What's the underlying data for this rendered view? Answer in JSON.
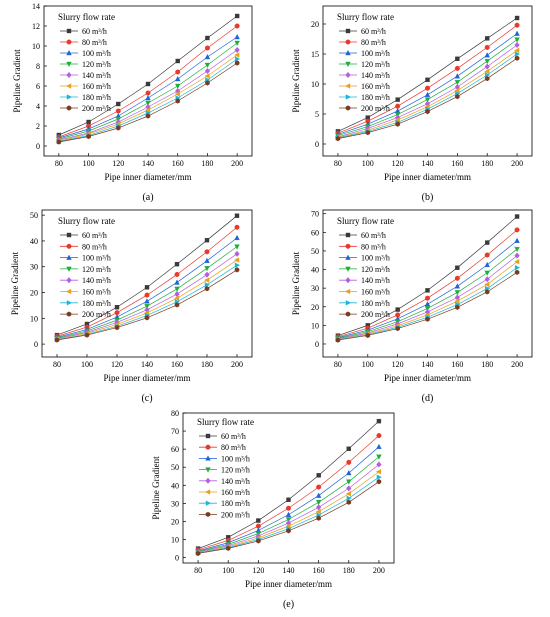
{
  "legend_title": "Slurry flow rate",
  "x_axis_title": "Pipe inner diameter/mm",
  "y_axis_title": "Pipeline Gradient",
  "series_names": [
    "60 m³/h",
    "80 m³/h",
    "100 m³/h",
    "120 m³/h",
    "140 m³/h",
    "160 m³/h",
    "180 m³/h",
    "200 m³/h"
  ],
  "series_colors": [
    "#3a3a3a",
    "#e8392b",
    "#1f64d8",
    "#1fae3a",
    "#b35ee0",
    "#e8a21a",
    "#1ab6dc",
    "#7a3a1e"
  ],
  "series_markers": [
    "square",
    "circle",
    "triangle-up",
    "triangle-down",
    "diamond",
    "triangle-left",
    "triangle-right",
    "hexagon"
  ],
  "x_ticks": [
    80,
    100,
    120,
    140,
    160,
    180,
    200
  ],
  "chart_data": [
    {
      "type": "line",
      "label": "(a)",
      "x": [
        80,
        100,
        120,
        140,
        160,
        180,
        200
      ],
      "xlabel": "Pipe inner diameter/mm",
      "ylabel": "Pipeline Gradient",
      "ylim": [
        -1,
        14
      ],
      "yticks": [
        0,
        2,
        4,
        6,
        8,
        10,
        12,
        14
      ],
      "legend": "top-left",
      "series": [
        {
          "name": "60 m³/h",
          "values": [
            1.1,
            2.4,
            4.2,
            6.2,
            8.5,
            10.8,
            13.0
          ]
        },
        {
          "name": "80 m³/h",
          "values": [
            0.9,
            2.0,
            3.5,
            5.3,
            7.4,
            9.8,
            12.0
          ]
        },
        {
          "name": "100 m³/h",
          "values": [
            0.8,
            1.7,
            3.0,
            4.8,
            6.7,
            8.9,
            10.9
          ]
        },
        {
          "name": "120 m³/h",
          "values": [
            0.7,
            1.5,
            2.7,
            4.3,
            6.0,
            8.1,
            10.3
          ]
        },
        {
          "name": "140 m³/h",
          "values": [
            0.6,
            1.3,
            2.4,
            3.9,
            5.5,
            7.5,
            9.6
          ]
        },
        {
          "name": "160 m³/h",
          "values": [
            0.5,
            1.2,
            2.2,
            3.6,
            5.2,
            7.0,
            9.1
          ]
        },
        {
          "name": "180 m³/h",
          "values": [
            0.45,
            1.05,
            2.0,
            3.3,
            4.8,
            6.6,
            8.7
          ]
        },
        {
          "name": "200 m³/h",
          "values": [
            0.4,
            0.95,
            1.8,
            3.0,
            4.5,
            6.3,
            8.3
          ]
        }
      ]
    },
    {
      "type": "line",
      "label": "(b)",
      "x": [
        80,
        100,
        120,
        140,
        160,
        180,
        200
      ],
      "xlabel": "Pipe inner diameter/mm",
      "ylabel": "Pipeline Gradient",
      "ylim": [
        -2,
        23
      ],
      "yticks": [
        0,
        5,
        10,
        15,
        20
      ],
      "legend": "top-left",
      "series": [
        {
          "name": "60 m³/h",
          "values": [
            2.1,
            4.4,
            7.4,
            10.7,
            14.2,
            17.6,
            21.0
          ]
        },
        {
          "name": "80 m³/h",
          "values": [
            1.8,
            3.8,
            6.3,
            9.3,
            12.6,
            16.1,
            19.8
          ]
        },
        {
          "name": "100 m³/h",
          "values": [
            1.6,
            3.3,
            5.5,
            8.2,
            11.3,
            14.8,
            18.4
          ]
        },
        {
          "name": "120 m³/h",
          "values": [
            1.4,
            2.9,
            4.9,
            7.4,
            10.3,
            13.8,
            17.4
          ]
        },
        {
          "name": "140 m³/h",
          "values": [
            1.2,
            2.6,
            4.4,
            6.7,
            9.5,
            12.9,
            16.5
          ]
        },
        {
          "name": "160 m³/h",
          "values": [
            1.1,
            2.3,
            4.0,
            6.2,
            8.9,
            12.1,
            15.6
          ]
        },
        {
          "name": "180 m³/h",
          "values": [
            1.0,
            2.1,
            3.6,
            5.8,
            8.4,
            11.5,
            15.0
          ]
        },
        {
          "name": "200 m³/h",
          "values": [
            0.9,
            1.9,
            3.3,
            5.4,
            7.9,
            10.9,
            14.3
          ]
        }
      ]
    },
    {
      "type": "line",
      "label": "(c)",
      "x": [
        80,
        100,
        120,
        140,
        160,
        180,
        200
      ],
      "xlabel": "Pipe inner diameter/mm",
      "ylabel": "Pipeline Gradient",
      "ylim": [
        -5,
        52
      ],
      "yticks": [
        0,
        10,
        20,
        30,
        40,
        50
      ],
      "legend": "top-left",
      "series": [
        {
          "name": "60 m³/h",
          "values": [
            3.5,
            7.8,
            14.3,
            22.0,
            31.0,
            40.3,
            49.8
          ]
        },
        {
          "name": "80 m³/h",
          "values": [
            3.0,
            6.6,
            12.2,
            19.0,
            27.0,
            35.8,
            45.3
          ]
        },
        {
          "name": "100 m³/h",
          "values": [
            2.6,
            5.7,
            10.5,
            16.6,
            23.9,
            32.3,
            41.2
          ]
        },
        {
          "name": "120 m³/h",
          "values": [
            2.3,
            5.1,
            9.3,
            14.7,
            21.4,
            29.4,
            37.8
          ]
        },
        {
          "name": "140 m³/h",
          "values": [
            2.1,
            4.6,
            8.4,
            13.3,
            19.4,
            26.9,
            35.0
          ]
        },
        {
          "name": "160 m³/h",
          "values": [
            1.9,
            4.2,
            7.6,
            12.1,
            17.8,
            24.8,
            32.6
          ]
        },
        {
          "name": "180 m³/h",
          "values": [
            1.7,
            3.8,
            6.9,
            11.1,
            16.4,
            23.0,
            30.6
          ]
        },
        {
          "name": "200 m³/h",
          "values": [
            1.6,
            3.5,
            6.4,
            10.2,
            15.2,
            21.5,
            28.8
          ]
        }
      ]
    },
    {
      "type": "line",
      "label": "(d)",
      "x": [
        80,
        100,
        120,
        140,
        160,
        180,
        200
      ],
      "xlabel": "Pipe inner diameter/mm",
      "ylabel": "Pipeline Gradient",
      "ylim": [
        -7,
        72
      ],
      "yticks": [
        0,
        10,
        20,
        30,
        40,
        50,
        60,
        70
      ],
      "legend": "top-left",
      "series": [
        {
          "name": "60 m³/h",
          "values": [
            4.5,
            10.0,
            18.5,
            28.8,
            41.0,
            54.5,
            68.5
          ]
        },
        {
          "name": "80 m³/h",
          "values": [
            3.9,
            8.5,
            15.6,
            24.6,
            35.3,
            47.8,
            61.3
          ]
        },
        {
          "name": "100 m³/h",
          "values": [
            3.4,
            7.4,
            13.5,
            21.4,
            31.0,
            42.5,
            55.5
          ]
        },
        {
          "name": "120 m³/h",
          "values": [
            3.0,
            6.6,
            12.0,
            19.1,
            27.7,
            38.2,
            51.0
          ]
        },
        {
          "name": "140 m³/h",
          "values": [
            2.7,
            5.9,
            10.8,
            17.2,
            25.0,
            34.8,
            47.5
          ]
        },
        {
          "name": "160 m³/h",
          "values": [
            2.5,
            5.4,
            9.8,
            15.6,
            23.0,
            32.0,
            44.2
          ]
        },
        {
          "name": "180 m³/h",
          "values": [
            2.3,
            5.0,
            9.0,
            14.4,
            21.2,
            29.8,
            41.0
          ]
        },
        {
          "name": "200 m³/h",
          "values": [
            2.1,
            4.6,
            8.3,
            13.3,
            19.7,
            28.0,
            38.5
          ]
        }
      ]
    },
    {
      "type": "line",
      "label": "(e)",
      "x": [
        80,
        100,
        120,
        140,
        160,
        180,
        200
      ],
      "xlabel": "Pipe inner diameter/mm",
      "ylabel": "Pipeline Gradient",
      "ylim": [
        -3,
        80
      ],
      "yticks": [
        0,
        10,
        20,
        30,
        40,
        50,
        60,
        70,
        80
      ],
      "legend": "top-left",
      "series": [
        {
          "name": "60 m³/h",
          "values": [
            5.0,
            11.2,
            20.5,
            32.0,
            45.5,
            60.2,
            75.5
          ]
        },
        {
          "name": "80 m³/h",
          "values": [
            4.3,
            9.5,
            17.4,
            27.3,
            39.0,
            52.7,
            67.5
          ]
        },
        {
          "name": "100 m³/h",
          "values": [
            3.7,
            8.2,
            15.0,
            23.7,
            34.3,
            46.8,
            61.3
          ]
        },
        {
          "name": "120 m³/h",
          "values": [
            3.3,
            7.3,
            13.3,
            21.1,
            30.6,
            42.0,
            55.8
          ]
        },
        {
          "name": "140 m³/h",
          "values": [
            3.0,
            6.6,
            12.0,
            19.1,
            27.8,
            38.3,
            51.5
          ]
        },
        {
          "name": "160 m³/h",
          "values": [
            2.7,
            6.0,
            10.9,
            17.4,
            25.4,
            35.3,
            47.5
          ]
        },
        {
          "name": "180 m³/h",
          "values": [
            2.5,
            5.5,
            10.0,
            16.0,
            23.5,
            32.8,
            44.5
          ]
        },
        {
          "name": "200 m³/h",
          "values": [
            2.3,
            5.1,
            9.2,
            14.8,
            21.8,
            30.6,
            42.0
          ]
        }
      ]
    }
  ]
}
